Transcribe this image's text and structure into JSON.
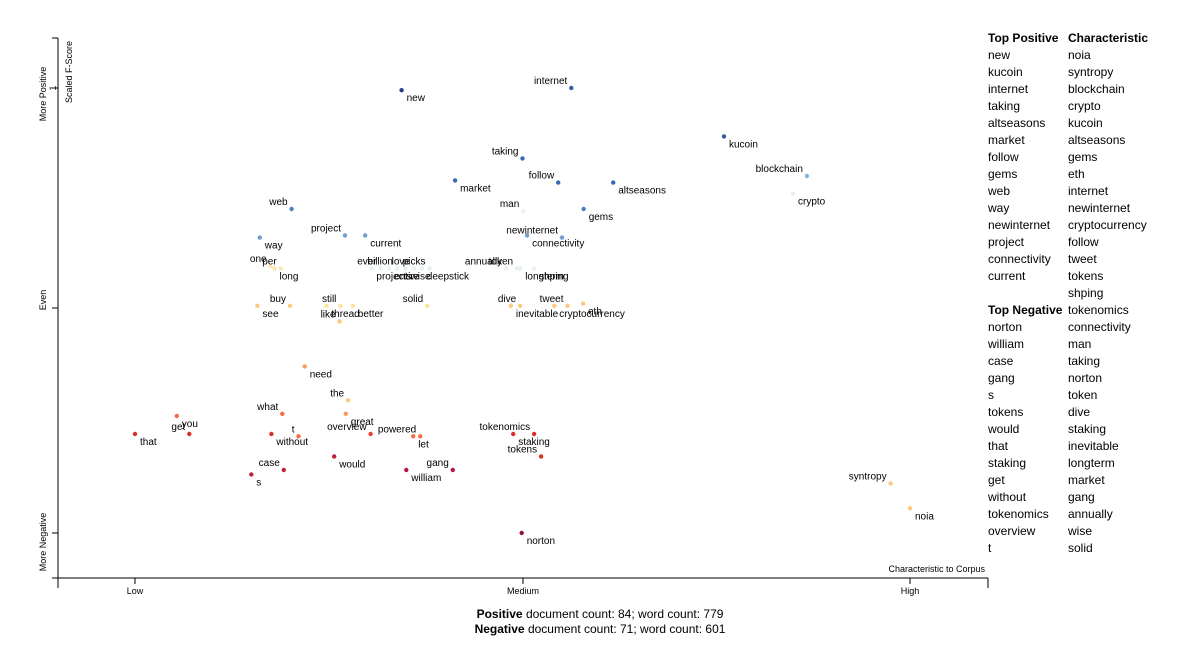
{
  "chart_data": {
    "type": "scatter",
    "ylabel_axis": "Scaled F-Score",
    "y_ticks": [
      "More Positive",
      "Even",
      "More Negative"
    ],
    "y_tick_values": [
      "1",
      "",
      ""
    ],
    "x_ticks": [
      "Low",
      "Medium",
      "High"
    ],
    "corner_label": "Characteristic to Corpus",
    "points": [
      {
        "term": "new",
        "x": 0.344,
        "y": 0.99,
        "color": "#2c3d8f"
      },
      {
        "term": "internet",
        "x": 0.563,
        "y": 1.0,
        "color": "#3558a8"
      },
      {
        "term": "kucoin",
        "x": 0.76,
        "y": 0.78,
        "color": "#3558a8"
      },
      {
        "term": "taking",
        "x": 0.5,
        "y": 0.68,
        "color": "#3b67b0"
      },
      {
        "term": "market",
        "x": 0.413,
        "y": 0.58,
        "color": "#3b67b0"
      },
      {
        "term": "follow",
        "x": 0.546,
        "y": 0.57,
        "color": "#3b67b0"
      },
      {
        "term": "altseasons",
        "x": 0.617,
        "y": 0.57,
        "color": "#3b67b0"
      },
      {
        "term": "blockchain",
        "x": 0.867,
        "y": 0.6,
        "color": "#8cb3dd"
      },
      {
        "term": "crypto",
        "x": 0.849,
        "y": 0.52,
        "color": "#e6eff8"
      },
      {
        "term": "web",
        "x": 0.202,
        "y": 0.45,
        "color": "#4d7fc0"
      },
      {
        "term": "gems",
        "x": 0.579,
        "y": 0.45,
        "color": "#4d7fc0"
      },
      {
        "term": "man",
        "x": 0.501,
        "y": 0.44,
        "color": "#e8f0f8"
      },
      {
        "term": "connectivity",
        "x": 0.506,
        "y": 0.33,
        "color": "#6f9ed2"
      },
      {
        "term": "project",
        "x": 0.271,
        "y": 0.33,
        "color": "#6f9ed2"
      },
      {
        "term": "current",
        "x": 0.297,
        "y": 0.33,
        "color": "#6f9ed2"
      },
      {
        "term": "newinternet",
        "x": 0.551,
        "y": 0.32,
        "color": "#6f9ed2"
      },
      {
        "term": "way",
        "x": 0.161,
        "y": 0.32,
        "color": "#6f9ed2"
      },
      {
        "term": "one",
        "x": 0.175,
        "y": 0.19,
        "color": "#fee9b6"
      },
      {
        "term": "long",
        "x": 0.18,
        "y": 0.18,
        "color": "#fde6b0"
      },
      {
        "term": "per",
        "x": 0.188,
        "y": 0.18,
        "color": "#fde6b0"
      },
      {
        "term": "projects",
        "x": 0.305,
        "y": 0.18,
        "color": "#e4f2e7"
      },
      {
        "term": "ever",
        "x": 0.317,
        "y": 0.18,
        "color": "#e4f2e7"
      },
      {
        "term": "entire",
        "x": 0.328,
        "y": 0.18,
        "color": "#e4f2e7"
      },
      {
        "term": "billion",
        "x": 0.338,
        "y": 0.18,
        "color": "#e4f2e7"
      },
      {
        "term": "wise",
        "x": 0.349,
        "y": 0.18,
        "color": "#e4f2e7"
      },
      {
        "term": "love",
        "x": 0.36,
        "y": 0.18,
        "color": "#e4f2e7"
      },
      {
        "term": "deepstick",
        "x": 0.37,
        "y": 0.18,
        "color": "#e4f2e7"
      },
      {
        "term": "picks",
        "x": 0.38,
        "y": 0.18,
        "color": "#e4f2e7"
      },
      {
        "term": "longterm",
        "x": 0.497,
        "y": 0.18,
        "color": "#e4f2e7"
      },
      {
        "term": "annually",
        "x": 0.479,
        "y": 0.18,
        "color": "#e4f2e7"
      },
      {
        "term": "shping",
        "x": 0.515,
        "y": 0.18,
        "color": "#e4f2e7"
      },
      {
        "term": "token",
        "x": 0.493,
        "y": 0.18,
        "color": "#e4f2e7"
      },
      {
        "term": "see",
        "x": 0.158,
        "y": 0.01,
        "color": "#fdc880"
      },
      {
        "term": "buy",
        "x": 0.2,
        "y": 0.01,
        "color": "#fdc880"
      },
      {
        "term": "thread",
        "x": 0.247,
        "y": 0.01,
        "color": "#fee39c"
      },
      {
        "term": "still",
        "x": 0.265,
        "y": 0.01,
        "color": "#fee39c"
      },
      {
        "term": "better",
        "x": 0.281,
        "y": 0.01,
        "color": "#fee39c"
      },
      {
        "term": "solid",
        "x": 0.377,
        "y": 0.01,
        "color": "#fee39c"
      },
      {
        "term": "inevitable",
        "x": 0.485,
        "y": 0.01,
        "color": "#fdc880"
      },
      {
        "term": "dive",
        "x": 0.497,
        "y": 0.01,
        "color": "#fdc880"
      },
      {
        "term": "cryptocurrency",
        "x": 0.541,
        "y": 0.01,
        "color": "#fdc880"
      },
      {
        "term": "tweet",
        "x": 0.558,
        "y": 0.01,
        "color": "#fdc880"
      },
      {
        "term": "eth",
        "x": 0.578,
        "y": 0.02,
        "color": "#fdc880"
      },
      {
        "term": "like",
        "x": 0.264,
        "y": -0.06,
        "color": "#fdc880"
      },
      {
        "term": "need",
        "x": 0.219,
        "y": -0.26,
        "color": "#f99c57"
      },
      {
        "term": "the",
        "x": 0.275,
        "y": -0.41,
        "color": "#fdc880"
      },
      {
        "term": "great",
        "x": 0.272,
        "y": -0.47,
        "color": "#f99c57"
      },
      {
        "term": "overview",
        "x": 0.304,
        "y": -0.56,
        "color": "#e8412d"
      },
      {
        "term": "you",
        "x": 0.054,
        "y": -0.48,
        "color": "#f46d43"
      },
      {
        "term": "what",
        "x": 0.19,
        "y": -0.47,
        "color": "#f46d43"
      },
      {
        "term": "that",
        "x": 0.0,
        "y": -0.56,
        "color": "#d73027"
      },
      {
        "term": "get",
        "x": 0.07,
        "y": -0.56,
        "color": "#d73027"
      },
      {
        "term": "without",
        "x": 0.176,
        "y": -0.56,
        "color": "#d73027"
      },
      {
        "term": "t",
        "x": 0.211,
        "y": -0.57,
        "color": "#f46d43"
      },
      {
        "term": "let",
        "x": 0.359,
        "y": -0.57,
        "color": "#f46d43"
      },
      {
        "term": "powered",
        "x": 0.368,
        "y": -0.57,
        "color": "#f46d43"
      },
      {
        "term": "staking",
        "x": 0.488,
        "y": -0.56,
        "color": "#d73027"
      },
      {
        "term": "tokenomics",
        "x": 0.515,
        "y": -0.56,
        "color": "#d73027"
      },
      {
        "term": "would",
        "x": 0.257,
        "y": -0.66,
        "color": "#c0203a"
      },
      {
        "term": "tokens",
        "x": 0.524,
        "y": -0.66,
        "color": "#d73027"
      },
      {
        "term": "s",
        "x": 0.15,
        "y": -0.74,
        "color": "#c0203a"
      },
      {
        "term": "case",
        "x": 0.192,
        "y": -0.72,
        "color": "#c0203a"
      },
      {
        "term": "william",
        "x": 0.35,
        "y": -0.72,
        "color": "#b0173f"
      },
      {
        "term": "gang",
        "x": 0.41,
        "y": -0.72,
        "color": "#b0173f"
      },
      {
        "term": "norton",
        "x": 0.499,
        "y": -1.0,
        "color": "#8e0f46"
      },
      {
        "term": "syntropy",
        "x": 0.975,
        "y": -0.78,
        "color": "#fdc880"
      },
      {
        "term": "noia",
        "x": 1.0,
        "y": -0.89,
        "color": "#fdc880"
      }
    ]
  },
  "sidebar": {
    "top_positive": {
      "title": "Top Positive",
      "items": [
        "new",
        "kucoin",
        "internet",
        "taking",
        "altseasons",
        "market",
        "follow",
        "gems",
        "web",
        "way",
        "newinternet",
        "project",
        "connectivity",
        "current"
      ]
    },
    "top_negative": {
      "title": "Top Negative",
      "items": [
        "norton",
        "william",
        "case",
        "gang",
        "s",
        "tokens",
        "would",
        "that",
        "staking",
        "get",
        "without",
        "tokenomics",
        "overview",
        "t"
      ]
    },
    "characteristic": {
      "title": "Characteristic",
      "items": [
        "noia",
        "syntropy",
        "blockchain",
        "crypto",
        "kucoin",
        "altseasons",
        "gems",
        "eth",
        "internet",
        "newinternet",
        "cryptocurrency",
        "follow",
        "tweet",
        "tokens",
        "shping",
        "tokenomics",
        "connectivity",
        "man",
        "taking",
        "norton",
        "token",
        "dive",
        "staking",
        "inevitable",
        "longterm",
        "market",
        "gang",
        "annually",
        "wise",
        "solid"
      ]
    }
  },
  "footer": {
    "pos_label": "Positive",
    "pos_text": "document count: 84; word count: 779",
    "neg_label": "Negative",
    "neg_text": "document count: 71; word count: 601"
  }
}
